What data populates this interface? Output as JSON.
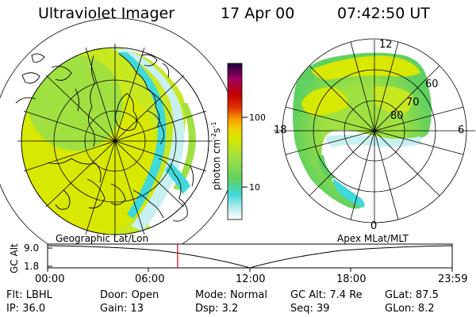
{
  "header": {
    "instrument": "Ultraviolet Imager",
    "date": "17 Apr 00",
    "time": "07:42:50 UT"
  },
  "left_panel": {
    "label": "Geographic Lat/Lon"
  },
  "right_panel": {
    "label": "Apex MLat/MLT",
    "mlt_labels": {
      "top": "12",
      "left": "18",
      "right": "6",
      "bottom": "0"
    },
    "lat_labels": [
      "60",
      "70",
      "80"
    ]
  },
  "colorbar": {
    "unit": "photon cm",
    "unit_sup1": "-2",
    "unit_mid": "s",
    "unit_sup2": "-1",
    "tick_100": "100",
    "tick_10": "10",
    "colors": [
      "#ffffff",
      "#c8f0f0",
      "#40d8d8",
      "#60d060",
      "#a0e040",
      "#d8e800",
      "#f0d000",
      "#f8a000",
      "#e03000",
      "#c00000",
      "#a00060",
      "#200040"
    ]
  },
  "altitude_plot": {
    "axis_label": "GC Alt",
    "tick_high": "9.0",
    "tick_low": "1.8",
    "time_labels": [
      "00:00",
      "06:00",
      "12:00",
      "18:00",
      "23:59"
    ],
    "current_time_fraction": 0.3214,
    "marker_color": "#e00000"
  },
  "info": {
    "filter_label": "Flt:",
    "filter_value": "LBHL",
    "door_label": "Door:",
    "door_value": "Open",
    "mode_label": "Mode:",
    "mode_value": "Normal",
    "gcalt_label": "GC Alt:",
    "gcalt_value": "7.4 Re",
    "glat_label": "GLat:",
    "glat_value": "87.5",
    "ip_label": "IP:",
    "ip_value": "36.0",
    "gain_label": "Gain:",
    "gain_value": "13",
    "dsp_label": "Dsp:",
    "dsp_value": "3.2",
    "seq_label": "Seq:",
    "seq_value": "39",
    "glon_label": "GLon:",
    "glon_value": "8.2"
  }
}
